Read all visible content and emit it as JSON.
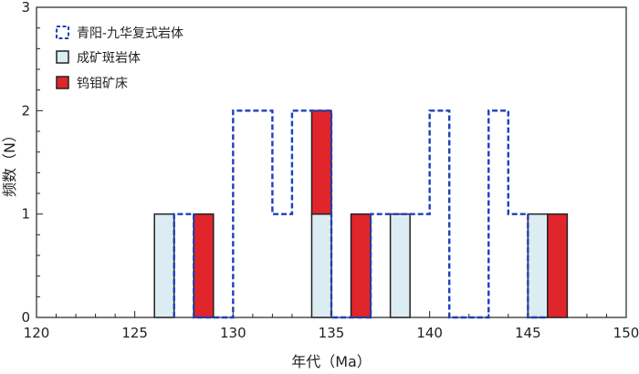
{
  "chart_data": {
    "type": "bar",
    "xlabel": "年代（Ma）",
    "ylabel": "频数（N）",
    "xlim": [
      120,
      150
    ],
    "ylim": [
      0,
      3
    ],
    "xticks": [
      120,
      125,
      130,
      135,
      140,
      145,
      150
    ],
    "yticks": [
      0,
      1,
      2,
      3
    ],
    "legend_position": "top-left",
    "series": [
      {
        "name": "青阳-九华复式岩体",
        "style": "dashed-step-outline",
        "color": "#1f3fbf",
        "steps": [
          {
            "x0": 127,
            "x1": 128,
            "value": 1
          },
          {
            "x0": 128,
            "x1": 129,
            "value": 0
          },
          {
            "x0": 129,
            "x1": 130,
            "value": 0
          },
          {
            "x0": 130,
            "x1": 132,
            "value": 2
          },
          {
            "x0": 132,
            "x1": 133,
            "value": 1
          },
          {
            "x0": 133,
            "x1": 135,
            "value": 2
          },
          {
            "x0": 135,
            "x1": 137,
            "value": 0
          },
          {
            "x0": 137,
            "x1": 140,
            "value": 1
          },
          {
            "x0": 140,
            "x1": 141,
            "value": 2
          },
          {
            "x0": 141,
            "x1": 143,
            "value": 0
          },
          {
            "x0": 143,
            "x1": 144,
            "value": 2
          },
          {
            "x0": 144,
            "x1": 145,
            "value": 1
          },
          {
            "x0": 145,
            "x1": 146,
            "value": 0
          }
        ]
      },
      {
        "name": "成矿斑岩体",
        "color": "#dcecf3",
        "bars": [
          {
            "x0": 126,
            "x1": 127,
            "value": 1
          },
          {
            "x0": 134,
            "x1": 135,
            "value": 1
          },
          {
            "x0": 138,
            "x1": 139,
            "value": 1
          },
          {
            "x0": 145,
            "x1": 146,
            "value": 1
          }
        ]
      },
      {
        "name": "钨钼矿床",
        "color": "#e0262b",
        "bars": [
          {
            "x0": 128,
            "x1": 129,
            "value": 1,
            "base": 0
          },
          {
            "x0": 134,
            "x1": 135,
            "value": 1,
            "base": 1
          },
          {
            "x0": 136,
            "x1": 137,
            "value": 1,
            "base": 0
          },
          {
            "x0": 146,
            "x1": 147,
            "value": 1,
            "base": 0
          }
        ]
      }
    ]
  }
}
